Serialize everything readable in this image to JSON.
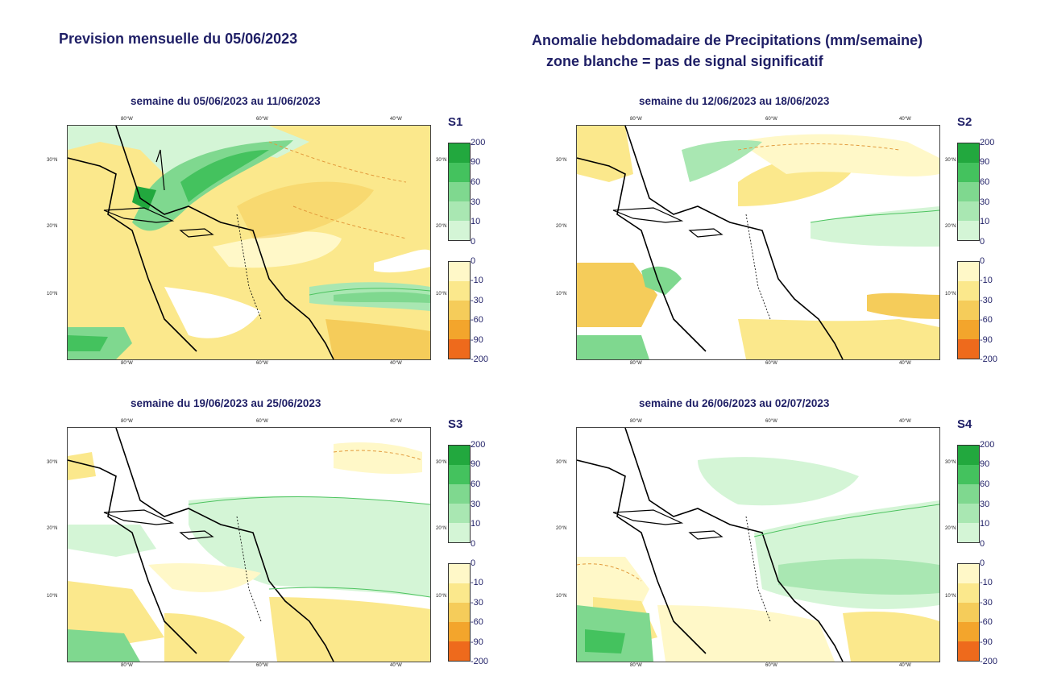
{
  "header": {
    "left_title": "Prevision mensuelle du 05/06/2023",
    "right_title_line1": "Anomalie hebdomadaire de Precipitations (mm/semaine)",
    "right_title_line2": "zone blanche = pas de signal significatif"
  },
  "axes": {
    "lon_labels": [
      "80°W",
      "60°W",
      "40°W"
    ],
    "lat_labels": [
      "30°N",
      "20°N",
      "10°N"
    ],
    "legend_lat_labels": [
      "30°N",
      "20°N",
      "10°N"
    ]
  },
  "legend": {
    "positive_labels": [
      "200",
      "90",
      "60",
      "30",
      "10",
      "0"
    ],
    "positive_colors": [
      "#22a83e",
      "#44c25e",
      "#7fd88f",
      "#a9e7b2",
      "#d4f5d6"
    ],
    "negative_labels": [
      "0",
      "-10",
      "-30",
      "-60",
      "-90",
      "-200"
    ],
    "negative_colors": [
      "#fff8c8",
      "#fbe88c",
      "#f5cc5a",
      "#f3a52c",
      "#ee6a1c"
    ]
  },
  "panels": [
    {
      "id": "S1",
      "code": "S1",
      "title": "semaine du 05/06/2023 au 11/06/2023"
    },
    {
      "id": "S2",
      "code": "S2",
      "title": "semaine du 12/06/2023 au 18/06/2023"
    },
    {
      "id": "S3",
      "code": "S3",
      "title": "semaine du 19/06/2023 au 25/06/2023"
    },
    {
      "id": "S4",
      "code": "S4",
      "title": "semaine du 26/06/2023 au 02/07/2023"
    }
  ]
}
